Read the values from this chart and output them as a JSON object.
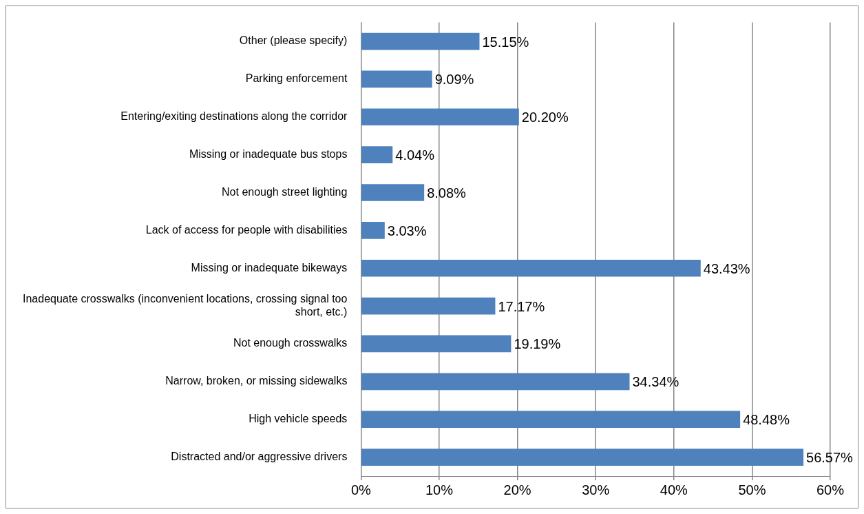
{
  "chart_data": {
    "type": "bar",
    "orientation": "horizontal",
    "categories": [
      "Other (please specify)",
      "Parking enforcement",
      "Entering/exiting destinations along the corridor",
      "Missing or inadequate bus stops",
      "Not enough street lighting",
      "Lack of access for people with disabilities",
      "Missing or inadequate bikeways",
      "Inadequate crosswalks (inconvenient locations, crossing signal too short, etc.)",
      "Not enough crosswalks",
      "Narrow, broken, or missing sidewalks",
      "High vehicle speeds",
      "Distracted and/or aggressive drivers"
    ],
    "values": [
      15.15,
      9.09,
      20.2,
      4.04,
      8.08,
      3.03,
      43.43,
      17.17,
      19.19,
      34.34,
      48.48,
      56.57
    ],
    "value_labels": [
      "15.15%",
      "9.09%",
      "20.20%",
      "4.04%",
      "8.08%",
      "3.03%",
      "43.43%",
      "17.17%",
      "19.19%",
      "34.34%",
      "48.48%",
      "56.57%"
    ],
    "color": "#4f81bd",
    "xlim": [
      0,
      60
    ],
    "xticks": [
      {
        "value": 0,
        "label": "0%"
      },
      {
        "value": 10,
        "label": "10%"
      },
      {
        "value": 20,
        "label": "20%"
      },
      {
        "value": 30,
        "label": "30%"
      },
      {
        "value": 40,
        "label": "40%"
      },
      {
        "value": 50,
        "label": "50%"
      },
      {
        "value": 60,
        "label": "60%"
      }
    ],
    "grid": "x"
  }
}
